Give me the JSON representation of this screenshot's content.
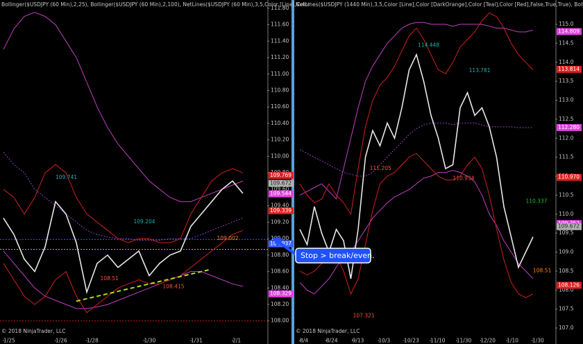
{
  "chart_data": [
    {
      "type": "line",
      "title": "Bollinger($USDJPY (60 Min),2,25), Bollinger($USDJPY (60 Min),2,100), NetLines($USDJPY (60 Min),3,5,Color [Line],Color",
      "xlim": [
        -0.33,
        25.33
      ],
      "xticks": [
        {
          "value": 0,
          "label": "1/25"
        },
        {
          "value": 5,
          "label": "1/26"
        },
        {
          "value": 8,
          "label": "1/28"
        },
        {
          "value": 13.5,
          "label": "1/30"
        },
        {
          "value": 18,
          "label": "1/31"
        },
        {
          "value": 22,
          "label": "2/1"
        }
      ],
      "ylim": [
        107.77,
        111.9
      ],
      "yticks": [
        {
          "value": 108,
          "label": "108.00"
        },
        {
          "value": 108.2,
          "label": "108.20"
        },
        {
          "value": 108.4,
          "label": "108.40"
        },
        {
          "value": 108.6,
          "label": "108.60"
        },
        {
          "value": 108.8,
          "label": "108.80"
        },
        {
          "value": 109,
          "label": "109.00"
        },
        {
          "value": 109.2,
          "label": "109.20"
        },
        {
          "value": 109.4,
          "label": "109.40"
        },
        {
          "value": 109.6,
          "label": "109.60"
        },
        {
          "value": 109.8,
          "label": "109.80"
        },
        {
          "value": 110,
          "label": "110.00"
        },
        {
          "value": 110.2,
          "label": "110.20"
        },
        {
          "value": 110.4,
          "label": "110.40"
        },
        {
          "value": 110.6,
          "label": "110.60"
        },
        {
          "value": 110.8,
          "label": "110.80"
        },
        {
          "value": 111,
          "label": "111.00"
        },
        {
          "value": 111.2,
          "label": "111.20"
        },
        {
          "value": 111.4,
          "label": "111.40"
        },
        {
          "value": 111.6,
          "label": "111.60"
        },
        {
          "value": 111.8,
          "label": "111.80"
        }
      ],
      "series": [
        {
          "color": "#c040c0",
          "values": [
            111.3,
            111.55,
            111.7,
            111.75,
            111.7,
            111.6,
            111.4,
            111.2,
            110.9,
            110.6,
            110.35,
            110.15,
            110.0,
            109.85,
            109.7,
            109.6,
            109.5,
            109.45,
            109.45,
            109.5,
            109.55,
            109.6,
            109.65,
            109.7
          ]
        },
        {
          "color": "#c040c0",
          "values": [
            108.85,
            108.7,
            108.55,
            108.4,
            108.3,
            108.25,
            108.2,
            108.15,
            108.15,
            108.17,
            108.2,
            108.25,
            108.3,
            108.35,
            108.4,
            108.45,
            108.5,
            108.55,
            108.6,
            108.6,
            108.55,
            108.5,
            108.45,
            108.42
          ]
        },
        {
          "color": "#9040c0",
          "dash": true,
          "values": [
            110.05,
            109.9,
            109.8,
            109.6,
            109.5,
            109.4,
            109.3,
            109.2,
            109.1,
            109.05,
            109.02,
            109.0,
            109.0,
            108.98,
            108.98,
            108.98,
            109.0,
            109.0,
            109.0,
            109.05,
            109.1,
            109.15,
            109.2,
            109.25
          ]
        },
        {
          "color": "#d02020",
          "values": [
            109.6,
            109.5,
            109.3,
            109.5,
            109.8,
            109.9,
            109.8,
            109.5,
            109.3,
            109.2,
            109.1,
            109.0,
            108.95,
            109.0,
            109.0,
            108.95,
            108.95,
            109.0,
            109.3,
            109.5,
            109.7,
            109.8,
            109.85,
            109.8
          ]
        },
        {
          "color": "#d02020",
          "values": [
            108.7,
            108.5,
            108.3,
            108.2,
            108.3,
            108.5,
            108.6,
            108.3,
            108.1,
            108.2,
            108.3,
            108.4,
            108.45,
            108.5,
            108.45,
            108.45,
            108.5,
            108.55,
            108.65,
            108.75,
            108.85,
            108.95,
            109.05,
            109.1
          ]
        },
        {
          "color": "#e8e8e8",
          "width": 1.6,
          "values": [
            109.25,
            109.05,
            108.75,
            108.6,
            108.9,
            109.45,
            109.3,
            108.95,
            108.35,
            108.7,
            108.8,
            108.65,
            108.75,
            108.85,
            108.55,
            108.7,
            108.8,
            108.85,
            109.15,
            109.3,
            109.45,
            109.6,
            109.7,
            109.55
          ]
        }
      ],
      "hlines": [
        {
          "value": 108.0,
          "color": "#d02020"
        },
        {
          "value": 108.99,
          "color": "#4060ff"
        },
        {
          "value": 108.87,
          "color": "#c0c000"
        }
      ],
      "trendline": {
        "color": "#b0e020",
        "from": [
          7,
          108.24
        ],
        "to": [
          19.7,
          108.62
        ]
      },
      "markers": [
        {
          "value": 109.769,
          "color": "#e02020"
        },
        {
          "value": 109.672,
          "color": "#b0b0b0"
        },
        {
          "value": 109.544,
          "color": "#e040e0"
        },
        {
          "value": 109.339,
          "color": "#e02020"
        },
        {
          "value": 108.937,
          "color": "#4060ff"
        },
        {
          "value": 108.329,
          "color": "#e040e0"
        }
      ],
      "level_labels": [
        {
          "value": 108.415,
          "at": 15.3,
          "color": "#ff5040"
        },
        {
          "value": 108.51,
          "at": 9.3,
          "color": "#ff5040"
        },
        {
          "value": 109.741,
          "at": 5,
          "color": "#20b0b0"
        },
        {
          "value": 109.204,
          "at": 12.5,
          "color": "#20b0b0"
        },
        {
          "value": 109.002,
          "at": 20.5,
          "color": "#ff8020"
        }
      ],
      "copyright": "© 2018 NinjaTrader, LLC"
    },
    {
      "type": "line",
      "title": "NetLines($USDJPY (1440 Min),3,5,Color [Line],Color [DarkOrange],Color [Teal],Color [Red],False,True,True), Bollinger",
      "xlim": [
        -0.76,
        35.05
      ],
      "xticks": [
        {
          "value": 0,
          "label": "8/4"
        },
        {
          "value": 3.6,
          "label": "8/24"
        },
        {
          "value": 7.2,
          "label": "9/13"
        },
        {
          "value": 10.8,
          "label": "10/3"
        },
        {
          "value": 14.3,
          "label": "10/23"
        },
        {
          "value": 17.9,
          "label": "11/10"
        },
        {
          "value": 21.5,
          "label": "11/30"
        },
        {
          "value": 24.8,
          "label": "12/20"
        },
        {
          "value": 28.4,
          "label": "1/10"
        },
        {
          "value": 31.9,
          "label": "1/30"
        }
      ],
      "ylim": [
        106.69,
        115.64
      ],
      "yticks": [
        {
          "value": 107,
          "label": "107.0"
        },
        {
          "value": 107.5,
          "label": "107.5"
        },
        {
          "value": 108,
          "label": "108.0"
        },
        {
          "value": 108.5,
          "label": "108.5"
        },
        {
          "value": 109,
          "label": "109.0"
        },
        {
          "value": 109.5,
          "label": "109.5"
        },
        {
          "value": 110,
          "label": "110.0"
        },
        {
          "value": 110.5,
          "label": "110.5"
        },
        {
          "value": 111,
          "label": "111.0"
        },
        {
          "value": 111.5,
          "label": "111.5"
        },
        {
          "value": 112,
          "label": "112.0"
        },
        {
          "value": 112.5,
          "label": "112.5"
        },
        {
          "value": 113,
          "label": "113.0"
        },
        {
          "value": 113.5,
          "label": "113.5"
        },
        {
          "value": 114,
          "label": "114.0"
        },
        {
          "value": 114.5,
          "label": "114.5"
        },
        {
          "value": 115,
          "label": "115.0"
        }
      ],
      "series": [
        {
          "color": "#c040c0",
          "values": [
            110.5,
            110.6,
            110.7,
            110.8,
            110.6,
            110.4,
            111.2,
            112.0,
            112.8,
            113.5,
            113.9,
            114.2,
            114.5,
            114.7,
            114.9,
            115.0,
            115.05,
            115.05,
            115.0,
            115.0,
            115.0,
            114.95,
            115.0,
            115.0,
            115.0,
            115.0,
            114.95,
            114.9,
            114.9,
            114.85,
            114.8,
            114.8,
            114.85
          ]
        },
        {
          "color": "#c040c0",
          "values": [
            108.2,
            108.0,
            107.9,
            108.1,
            108.3,
            108.6,
            108.9,
            109.0,
            109.3,
            109.6,
            109.9,
            110.1,
            110.3,
            110.45,
            110.55,
            110.65,
            110.8,
            110.95,
            111.0,
            111.1,
            111.1,
            111.15,
            111.1,
            111.0,
            110.85,
            110.5,
            110.0,
            109.7,
            109.3,
            109.0,
            108.7,
            108.5,
            108.3
          ]
        },
        {
          "color": "#9040c0",
          "dash": true,
          "values": [
            111.7,
            111.6,
            111.5,
            111.4,
            111.3,
            111.2,
            111.1,
            111.05,
            111.0,
            111.0,
            111.1,
            111.3,
            111.5,
            111.7,
            111.9,
            112.1,
            112.25,
            112.35,
            112.4,
            112.4,
            112.4,
            112.35,
            112.4,
            112.4,
            112.4,
            112.35,
            112.3,
            112.3,
            112.3,
            112.3,
            112.28,
            112.28,
            112.28
          ]
        },
        {
          "color": "#d02020",
          "values": [
            110.8,
            110.5,
            110.3,
            110.4,
            110.8,
            110.5,
            110.3,
            110.0,
            111.2,
            112.3,
            113.0,
            113.4,
            113.6,
            113.9,
            114.3,
            114.7,
            114.9,
            114.6,
            114.2,
            113.8,
            113.7,
            114.0,
            114.4,
            114.6,
            114.8,
            115.1,
            115.3,
            115.2,
            114.9,
            114.5,
            114.2,
            114.0,
            113.8
          ]
        },
        {
          "color": "#d02020",
          "values": [
            108.5,
            108.4,
            108.5,
            108.7,
            108.9,
            108.9,
            108.5,
            107.9,
            108.3,
            109.2,
            110.1,
            110.8,
            111.0,
            111.1,
            111.3,
            111.5,
            111.6,
            111.4,
            111.2,
            111.0,
            110.9,
            110.9,
            111.0,
            111.3,
            111.5,
            111.2,
            110.5,
            109.6,
            108.8,
            108.2,
            107.9,
            107.8,
            107.9
          ]
        },
        {
          "color": "#e8e8e8",
          "width": 1.6,
          "values": [
            109.6,
            109.2,
            110.2,
            109.5,
            109.0,
            109.6,
            109.3,
            108.3,
            109.6,
            111.5,
            112.2,
            111.8,
            112.4,
            112.0,
            112.8,
            113.8,
            114.2,
            113.5,
            112.6,
            112.0,
            111.2,
            111.3,
            112.8,
            113.2,
            112.6,
            112.8,
            112.3,
            111.5,
            110.2,
            109.4,
            108.6,
            109.0,
            109.4
          ]
        }
      ],
      "hlines": [],
      "markers": [
        {
          "value": 114.809,
          "color": "#e040e0"
        },
        {
          "value": 113.814,
          "color": "#e02020"
        },
        {
          "value": 112.28,
          "label": "112.280",
          "color": "#e040e0"
        },
        {
          "value": 110.97,
          "label": "110.970",
          "color": "#e02020"
        },
        {
          "value": 109.752,
          "color": "#e040e0"
        },
        {
          "value": 109.672,
          "color": "#b0b0b0"
        },
        {
          "value": 108.126,
          "color": "#e02020"
        }
      ],
      "level_labels": [
        {
          "value": 114.448,
          "at": 16.2,
          "color": "#20b0b0"
        },
        {
          "value": 113.781,
          "at": 23.2,
          "color": "#20b0b0"
        },
        {
          "value": 111.205,
          "at": 9.6,
          "color": "#ff5040"
        },
        {
          "value": 110.934,
          "at": 21,
          "color": "#ff5040"
        },
        {
          "value": 110.337,
          "at": 31,
          "color": "#20c020"
        },
        {
          "value": 108.51,
          "at": 32,
          "color": "#ff8020"
        },
        {
          "value": 107.321,
          "at": 7.3,
          "color": "#ff5040"
        }
      ],
      "copyright": "© 2018 NinjaTrader, LLC"
    }
  ],
  "annotation": {
    "text": "Stop > break/even."
  }
}
